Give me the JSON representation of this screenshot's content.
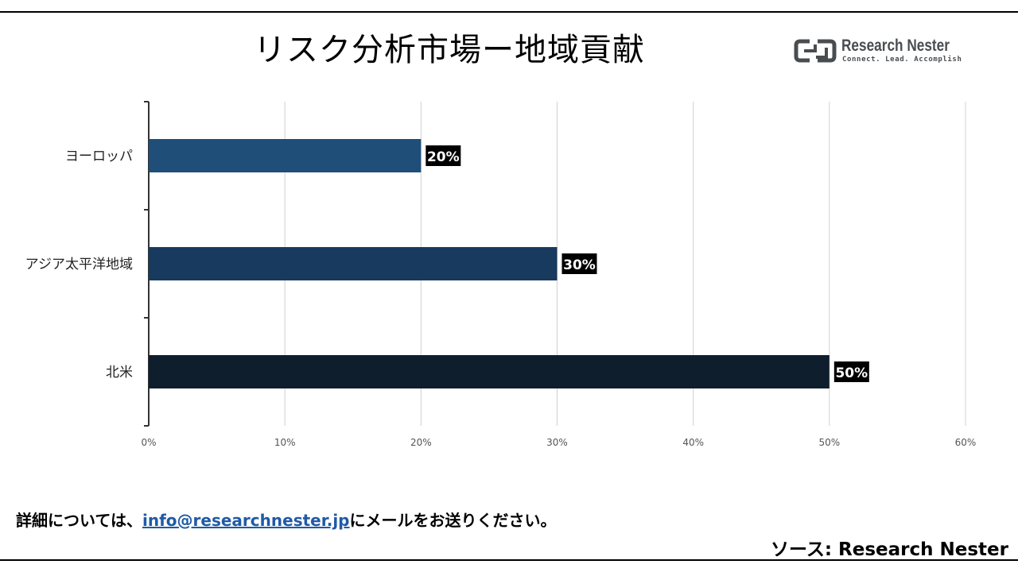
{
  "header": {
    "title": "リスク分析市場ー地域貢献",
    "logo": {
      "name": "Research Nester",
      "tagline": "Connect. Lead. Accomplish",
      "icon": "research-nester-logo-icon",
      "color": "#4a4d50"
    }
  },
  "chart_data": {
    "type": "bar",
    "orientation": "horizontal",
    "categories": [
      "ヨーロッパ",
      "アジア太平洋地域",
      "北米"
    ],
    "values": [
      20,
      30,
      50
    ],
    "data_labels": [
      "20%",
      "30%",
      "50%"
    ],
    "bar_colors": [
      "#1f4e79",
      "#173a5e",
      "#0f1e2d"
    ],
    "xlim": [
      0,
      60
    ],
    "x_ticks": [
      0,
      10,
      20,
      30,
      40,
      50,
      60
    ],
    "x_tick_labels": [
      "0%",
      "10%",
      "20%",
      "30%",
      "40%",
      "50%",
      "60%"
    ],
    "grid": true,
    "legend": "none"
  },
  "footer": {
    "note_prefix": "詳細については、",
    "email": "info@researchnester.jp",
    "note_suffix": "にメールをお送りください。",
    "source": "ソース: Research Nester"
  }
}
